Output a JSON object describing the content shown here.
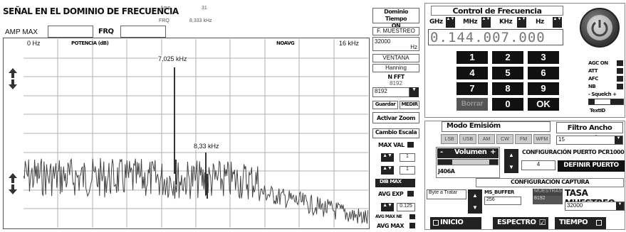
{
  "title": "SEÑAL EN EL DOMINIO DE FRECUENCIA",
  "readouts": {
    "amp_label": "Amp",
    "amp_value": "31",
    "frq_label": "FRQ",
    "frq_value": "8,333 kHz"
  },
  "top_fields": {
    "amp_max_label": "AMP MAX",
    "frq_label": "FRQ"
  },
  "spectrum": {
    "x_start": "0 Hz",
    "x_end": "16 kHz",
    "y_label": "POTENCIA (dB)",
    "mode_label": "NOAVG",
    "peak1_label": "7,025 kHz",
    "peak2_label": "8,33 kHz"
  },
  "middle_panel": {
    "dominio_tiempo": "Dominio Tiempo",
    "dominio_value": "ON",
    "muestreo_label": "F. MUESTREO",
    "muestreo_value": "32000",
    "hz": "Hz",
    "ventana_label": "VENTANA",
    "ventana_value": "Hanning",
    "nfft_label": "N FFT",
    "nfft_value": "8192",
    "nfft_select": "8192",
    "guardar": "Guardar",
    "medir": "MEDIR",
    "zoom": "Activar Zoom",
    "cambio_escala": "Cambio Escala",
    "max_val": "MAX VAL",
    "field1": "1",
    "field2": "1",
    "dib_max": "DIB MAX",
    "avg_exp": "AVG EXP",
    "avg_value": "0.125",
    "avg_max_ne": "AVG MAX NE",
    "avg_max": "AVG MAX"
  },
  "freq_control": {
    "title": "Control de Frecuencia",
    "ghz": "GHz",
    "mhz": "MHz",
    "khz": "KHz",
    "hz": "Hz",
    "display": "0.144.007.000",
    "keys": [
      "1",
      "2",
      "3",
      "4",
      "5",
      "6",
      "7",
      "8",
      "9",
      "Borrar",
      "0",
      "OK"
    ]
  },
  "right_toggles": {
    "agc": "AGC ON",
    "att": "ATT",
    "afc": "AFC",
    "nb": "NB",
    "squelch": "- Squelch +",
    "textid": "TextID"
  },
  "emision": {
    "title": "Modo Emisióm",
    "modes": [
      "LSB",
      "USB",
      "AM",
      "CW",
      "FM",
      "WFM"
    ]
  },
  "filtro": {
    "title": "Filtro Ancho Banda",
    "value": "15"
  },
  "volumen": {
    "label": "Volumen",
    "minus": "-",
    "plus": "+",
    "device": "J406A"
  },
  "puerto": {
    "title": "CONFIGURACIÓN PUERTO PCR1000",
    "value": "4",
    "button": "DEFINIR PUERTO"
  },
  "captura": {
    "title": "CONFIGURACIÓN CAPTURA",
    "byte_label": "Byte a Tratar",
    "ms_buffer_label": "MS_BUFFER",
    "ms_buffer_value": "256",
    "muestras_label": "MUESTRAS",
    "muestras_value": "8192",
    "tasa_label": "TASA MUESTREO",
    "tasa_value": "32000"
  },
  "bottom": {
    "inicio": "INICIO",
    "espectro": "ESPECTRO",
    "espectro_check": "☑",
    "tiempo": "TIEMPO"
  },
  "colors": {
    "grid": "#b0b0b0",
    "signal": "#444444",
    "dark": "#222222"
  }
}
